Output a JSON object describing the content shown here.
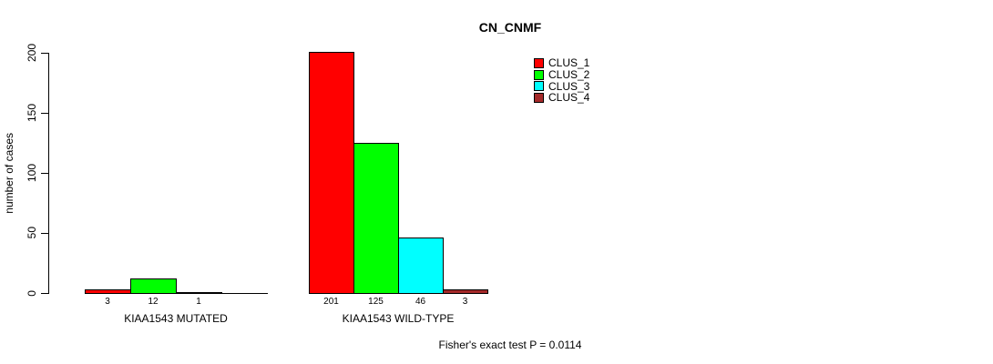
{
  "chart_data": {
    "type": "bar",
    "title": "CN_CNMF",
    "ylabel": "number of cases",
    "xlabel": "",
    "ylim": [
      0,
      200
    ],
    "yticks": [
      0,
      50,
      100,
      150,
      200
    ],
    "grid": false,
    "legend_position": "top-right",
    "series_colors": [
      "#FF0000",
      "#00FF00",
      "#00FFFF",
      "#A52A2A"
    ],
    "legend": [
      {
        "label": "CLUS_1",
        "color": "#FF0000"
      },
      {
        "label": "CLUS_2",
        "color": "#00FF00"
      },
      {
        "label": "CLUS_3",
        "color": "#00FFFF"
      },
      {
        "label": "CLUS_4",
        "color": "#A52A2A"
      }
    ],
    "groups": [
      {
        "label": "KIAA1543 MUTATED",
        "values": [
          3,
          12,
          1,
          0
        ],
        "value_labels": [
          "3",
          "12",
          "1",
          ""
        ]
      },
      {
        "label": "KIAA1543 WILD-TYPE",
        "values": [
          201,
          125,
          46,
          3
        ],
        "value_labels": [
          "201",
          "125",
          "46",
          "3"
        ]
      }
    ],
    "footnote": "Fisher's exact test P = 0.0114"
  }
}
